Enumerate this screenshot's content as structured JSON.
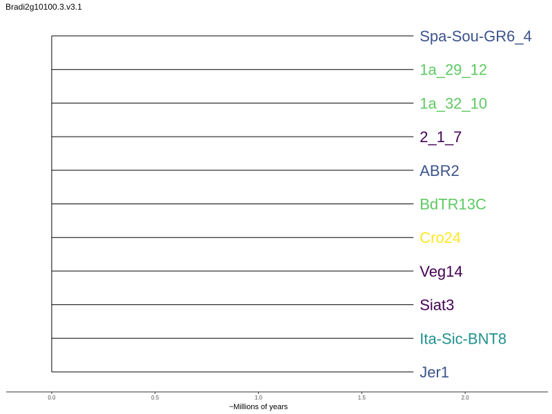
{
  "title": "Bradi2g10100.3.v3.1",
  "chart_data": {
    "type": "dendrogram",
    "xlabel": "~Millions of years",
    "xlim": [
      -0.22,
      2.4
    ],
    "x_ticks": [
      {
        "value": 0.0,
        "label": "0.0"
      },
      {
        "value": 0.5,
        "label": "0.5"
      },
      {
        "value": 1.0,
        "label": "1.0"
      },
      {
        "value": 1.5,
        "label": "1.5"
      },
      {
        "value": 2.0,
        "label": "2.0"
      }
    ],
    "root_x": 0.0,
    "leaves": [
      {
        "name": "Spa-Sou-GR6_4",
        "x": 1.75,
        "color": "#3b528b"
      },
      {
        "name": "1a_29_12",
        "x": 1.75,
        "color": "#5ec962"
      },
      {
        "name": "1a_32_10",
        "x": 1.75,
        "color": "#5ec962"
      },
      {
        "name": "2_1_7",
        "x": 1.75,
        "color": "#440154"
      },
      {
        "name": "ABR2",
        "x": 1.75,
        "color": "#3b528b"
      },
      {
        "name": "BdTR13C",
        "x": 1.75,
        "color": "#5ec962"
      },
      {
        "name": "Cro24",
        "x": 1.75,
        "color": "#fde725"
      },
      {
        "name": "Veg14",
        "x": 1.75,
        "color": "#440154"
      },
      {
        "name": "Siat3",
        "x": 1.75,
        "color": "#440154"
      },
      {
        "name": "Ita-Sic-BNT8",
        "x": 1.75,
        "color": "#21918c"
      },
      {
        "name": "Jer1",
        "x": 1.75,
        "color": "#3b528b"
      }
    ]
  }
}
